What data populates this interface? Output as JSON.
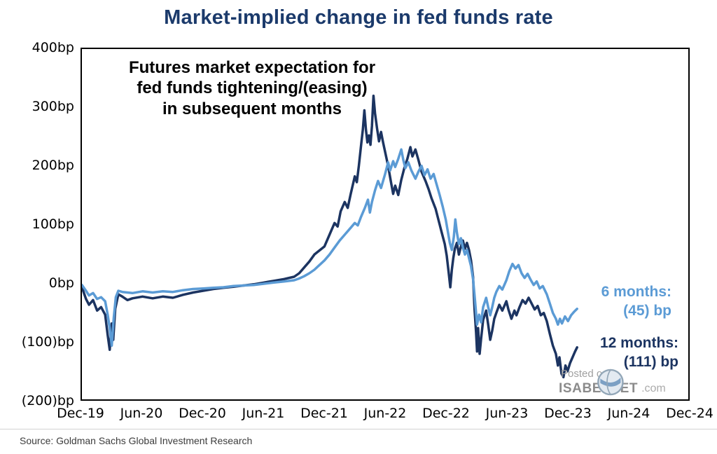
{
  "page": {
    "title": "Market-implied change in fed funds rate"
  },
  "annotation": {
    "line1": "Futures market expectation for",
    "line2": "fed funds tightening/(easing)",
    "line3": "in subsequent months"
  },
  "series_labels": {
    "six_months": {
      "line1": "6 months:",
      "line2": "(45) bp"
    },
    "twelve_months": {
      "line1": "12 months:",
      "line2": "(111) bp"
    }
  },
  "watermark": {
    "posted_on": "Posted on",
    "brand": "ISABELNET",
    "suffix": ".com"
  },
  "footer": {
    "source": "Source: Goldman Sachs Global Investment Research"
  },
  "colors": {
    "title": "#1b3a6b",
    "six_months": "#5b9bd5",
    "twelve_months": "#1c3461"
  },
  "chart_data": {
    "type": "line",
    "title": "Market-implied change in fed funds rate",
    "subtitle": "Futures market expectation for fed funds tightening/(easing) in subsequent months",
    "x_unit": "months since Dec-2019",
    "y_unit": "basis points (bp)",
    "xlim": [
      0,
      60
    ],
    "ylim": [
      -200,
      400
    ],
    "grid": false,
    "legend_position": "right-of-line-ends",
    "x_ticks": [
      {
        "label": "Dec-19",
        "value": 0
      },
      {
        "label": "Jun-20",
        "value": 6
      },
      {
        "label": "Dec-20",
        "value": 12
      },
      {
        "label": "Jun-21",
        "value": 18
      },
      {
        "label": "Dec-21",
        "value": 24
      },
      {
        "label": "Jun-22",
        "value": 30
      },
      {
        "label": "Dec-22",
        "value": 36
      },
      {
        "label": "Jun-23",
        "value": 42
      },
      {
        "label": "Dec-23",
        "value": 48
      },
      {
        "label": "Jun-24",
        "value": 54
      },
      {
        "label": "Dec-24",
        "value": 60
      }
    ],
    "y_ticks": [
      {
        "label": "400bp",
        "value": 400
      },
      {
        "label": "300bp",
        "value": 300
      },
      {
        "label": "200bp",
        "value": 200
      },
      {
        "label": "100bp",
        "value": 100
      },
      {
        "label": "0bp",
        "value": 0
      },
      {
        "label": "(100)bp",
        "value": -100
      },
      {
        "label": "(200)bp",
        "value": -200
      }
    ],
    "series": [
      {
        "id": "twelve-months",
        "name": "12 months",
        "color": "#1c3461",
        "stroke_width": 3.5,
        "end_value_bp": -111,
        "points": [
          [
            0,
            -8
          ],
          [
            0.4,
            -28
          ],
          [
            0.7,
            -38
          ],
          [
            1.1,
            -30
          ],
          [
            1.5,
            -48
          ],
          [
            1.9,
            -42
          ],
          [
            2.3,
            -55
          ],
          [
            2.55,
            -90
          ],
          [
            2.75,
            -115
          ],
          [
            2.95,
            -70
          ],
          [
            3.1,
            -98
          ],
          [
            3.3,
            -45
          ],
          [
            3.6,
            -20
          ],
          [
            4,
            -24
          ],
          [
            4.5,
            -30
          ],
          [
            5,
            -27
          ],
          [
            6,
            -24
          ],
          [
            7,
            -27
          ],
          [
            8,
            -24
          ],
          [
            9,
            -26
          ],
          [
            10,
            -21
          ],
          [
            11,
            -17
          ],
          [
            12,
            -14
          ],
          [
            13,
            -11
          ],
          [
            14,
            -9
          ],
          [
            15,
            -7
          ],
          [
            16,
            -5
          ],
          [
            17,
            -3
          ],
          [
            18,
            0
          ],
          [
            19,
            3
          ],
          [
            20,
            6
          ],
          [
            21,
            10
          ],
          [
            21.5,
            16
          ],
          [
            22,
            26
          ],
          [
            22.5,
            36
          ],
          [
            23,
            48
          ],
          [
            23.5,
            55
          ],
          [
            24,
            62
          ],
          [
            24.5,
            82
          ],
          [
            25,
            102
          ],
          [
            25.3,
            96
          ],
          [
            25.6,
            122
          ],
          [
            26,
            138
          ],
          [
            26.3,
            128
          ],
          [
            26.6,
            152
          ],
          [
            27,
            182
          ],
          [
            27.2,
            172
          ],
          [
            27.4,
            200
          ],
          [
            27.6,
            232
          ],
          [
            27.8,
            262
          ],
          [
            27.95,
            295
          ],
          [
            28.1,
            262
          ],
          [
            28.25,
            240
          ],
          [
            28.4,
            252
          ],
          [
            28.55,
            236
          ],
          [
            28.7,
            268
          ],
          [
            28.85,
            320
          ],
          [
            29,
            290
          ],
          [
            29.2,
            264
          ],
          [
            29.4,
            242
          ],
          [
            29.6,
            258
          ],
          [
            29.8,
            240
          ],
          [
            30,
            224
          ],
          [
            30.3,
            200
          ],
          [
            30.6,
            170
          ],
          [
            30.8,
            152
          ],
          [
            31,
            166
          ],
          [
            31.3,
            150
          ],
          [
            31.6,
            176
          ],
          [
            31.9,
            196
          ],
          [
            32.2,
            212
          ],
          [
            32.5,
            232
          ],
          [
            32.7,
            216
          ],
          [
            33,
            228
          ],
          [
            33.3,
            210
          ],
          [
            33.6,
            190
          ],
          [
            34,
            174
          ],
          [
            34.3,
            160
          ],
          [
            34.6,
            144
          ],
          [
            35,
            126
          ],
          [
            35.3,
            106
          ],
          [
            35.6,
            86
          ],
          [
            35.9,
            66
          ],
          [
            36.1,
            46
          ],
          [
            36.3,
            16
          ],
          [
            36.45,
            -8
          ],
          [
            36.6,
            22
          ],
          [
            36.75,
            42
          ],
          [
            36.9,
            58
          ],
          [
            37.1,
            68
          ],
          [
            37.3,
            48
          ],
          [
            37.5,
            62
          ],
          [
            37.7,
            72
          ],
          [
            37.9,
            58
          ],
          [
            38.1,
            68
          ],
          [
            38.3,
            56
          ],
          [
            38.5,
            38
          ],
          [
            38.7,
            10
          ],
          [
            38.85,
            -45
          ],
          [
            39,
            -85
          ],
          [
            39.1,
            -118
          ],
          [
            39.2,
            -78
          ],
          [
            39.35,
            -122
          ],
          [
            39.5,
            -96
          ],
          [
            39.7,
            -64
          ],
          [
            40,
            -48
          ],
          [
            40.2,
            -72
          ],
          [
            40.4,
            -98
          ],
          [
            40.6,
            -82
          ],
          [
            40.8,
            -62
          ],
          [
            41,
            -52
          ],
          [
            41.3,
            -38
          ],
          [
            41.6,
            -48
          ],
          [
            42,
            -32
          ],
          [
            42.2,
            -46
          ],
          [
            42.5,
            -62
          ],
          [
            42.8,
            -48
          ],
          [
            43,
            -56
          ],
          [
            43.3,
            -42
          ],
          [
            43.6,
            -30
          ],
          [
            43.9,
            -36
          ],
          [
            44.2,
            -26
          ],
          [
            44.5,
            -36
          ],
          [
            44.8,
            -46
          ],
          [
            45.1,
            -40
          ],
          [
            45.4,
            -56
          ],
          [
            45.7,
            -52
          ],
          [
            46,
            -66
          ],
          [
            46.3,
            -88
          ],
          [
            46.6,
            -108
          ],
          [
            46.9,
            -122
          ],
          [
            47.1,
            -142
          ],
          [
            47.25,
            -128
          ],
          [
            47.45,
            -156
          ],
          [
            47.65,
            -162
          ],
          [
            47.85,
            -142
          ],
          [
            48.05,
            -152
          ],
          [
            48.3,
            -138
          ],
          [
            48.55,
            -128
          ],
          [
            48.8,
            -118
          ],
          [
            49,
            -111
          ]
        ]
      },
      {
        "id": "six-months",
        "name": "6 months",
        "color": "#5b9bd5",
        "stroke_width": 3.5,
        "end_value_bp": -45,
        "points": [
          [
            0,
            -4
          ],
          [
            0.4,
            -14
          ],
          [
            0.7,
            -22
          ],
          [
            1.1,
            -18
          ],
          [
            1.5,
            -28
          ],
          [
            1.9,
            -25
          ],
          [
            2.3,
            -32
          ],
          [
            2.55,
            -55
          ],
          [
            2.75,
            -78
          ],
          [
            2.95,
            -108
          ],
          [
            3.15,
            -60
          ],
          [
            3.35,
            -25
          ],
          [
            3.6,
            -14
          ],
          [
            4,
            -16
          ],
          [
            5,
            -18
          ],
          [
            6,
            -15
          ],
          [
            7,
            -17
          ],
          [
            8,
            -15
          ],
          [
            9,
            -16
          ],
          [
            10,
            -13
          ],
          [
            11,
            -11
          ],
          [
            12,
            -10
          ],
          [
            13,
            -9
          ],
          [
            14,
            -8
          ],
          [
            15,
            -6
          ],
          [
            16,
            -5
          ],
          [
            17,
            -4
          ],
          [
            18,
            -2
          ],
          [
            19,
            0
          ],
          [
            20,
            2
          ],
          [
            21,
            4
          ],
          [
            21.5,
            7
          ],
          [
            22,
            11
          ],
          [
            22.5,
            16
          ],
          [
            23,
            22
          ],
          [
            23.5,
            30
          ],
          [
            24,
            38
          ],
          [
            24.5,
            48
          ],
          [
            25,
            60
          ],
          [
            25.5,
            72
          ],
          [
            26,
            82
          ],
          [
            26.5,
            92
          ],
          [
            27,
            102
          ],
          [
            27.3,
            98
          ],
          [
            27.6,
            112
          ],
          [
            28,
            128
          ],
          [
            28.3,
            142
          ],
          [
            28.5,
            120
          ],
          [
            28.7,
            138
          ],
          [
            29,
            158
          ],
          [
            29.3,
            174
          ],
          [
            29.6,
            162
          ],
          [
            30,
            186
          ],
          [
            30.3,
            206
          ],
          [
            30.5,
            192
          ],
          [
            30.8,
            208
          ],
          [
            31,
            198
          ],
          [
            31.3,
            212
          ],
          [
            31.6,
            228
          ],
          [
            31.8,
            210
          ],
          [
            32,
            196
          ],
          [
            32.3,
            206
          ],
          [
            32.6,
            192
          ],
          [
            33,
            178
          ],
          [
            33.3,
            190
          ],
          [
            33.6,
            200
          ],
          [
            33.9,
            184
          ],
          [
            34.2,
            194
          ],
          [
            34.5,
            178
          ],
          [
            34.8,
            186
          ],
          [
            35.1,
            168
          ],
          [
            35.4,
            150
          ],
          [
            35.7,
            130
          ],
          [
            36,
            108
          ],
          [
            36.2,
            88
          ],
          [
            36.4,
            68
          ],
          [
            36.6,
            56
          ],
          [
            36.8,
            78
          ],
          [
            36.95,
            108
          ],
          [
            37.1,
            86
          ],
          [
            37.3,
            66
          ],
          [
            37.5,
            76
          ],
          [
            37.7,
            60
          ],
          [
            37.9,
            48
          ],
          [
            38.1,
            56
          ],
          [
            38.3,
            42
          ],
          [
            38.5,
            28
          ],
          [
            38.7,
            6
          ],
          [
            38.9,
            -32
          ],
          [
            39.1,
            -72
          ],
          [
            39.3,
            -55
          ],
          [
            39.5,
            -68
          ],
          [
            39.7,
            -42
          ],
          [
            40,
            -26
          ],
          [
            40.2,
            -42
          ],
          [
            40.4,
            -56
          ],
          [
            40.6,
            -42
          ],
          [
            40.8,
            -26
          ],
          [
            41,
            -16
          ],
          [
            41.3,
            -6
          ],
          [
            41.6,
            -12
          ],
          [
            42,
            4
          ],
          [
            42.3,
            20
          ],
          [
            42.6,
            32
          ],
          [
            42.9,
            24
          ],
          [
            43.2,
            30
          ],
          [
            43.5,
            16
          ],
          [
            43.8,
            8
          ],
          [
            44.1,
            15
          ],
          [
            44.4,
            5
          ],
          [
            44.7,
            -4
          ],
          [
            45,
            2
          ],
          [
            45.3,
            -10
          ],
          [
            45.6,
            -6
          ],
          [
            46,
            -20
          ],
          [
            46.3,
            -36
          ],
          [
            46.6,
            -52
          ],
          [
            46.9,
            -62
          ],
          [
            47.1,
            -72
          ],
          [
            47.3,
            -62
          ],
          [
            47.5,
            -70
          ],
          [
            47.8,
            -58
          ],
          [
            48.1,
            -66
          ],
          [
            48.4,
            -56
          ],
          [
            48.7,
            -50
          ],
          [
            49,
            -45
          ]
        ]
      }
    ]
  }
}
